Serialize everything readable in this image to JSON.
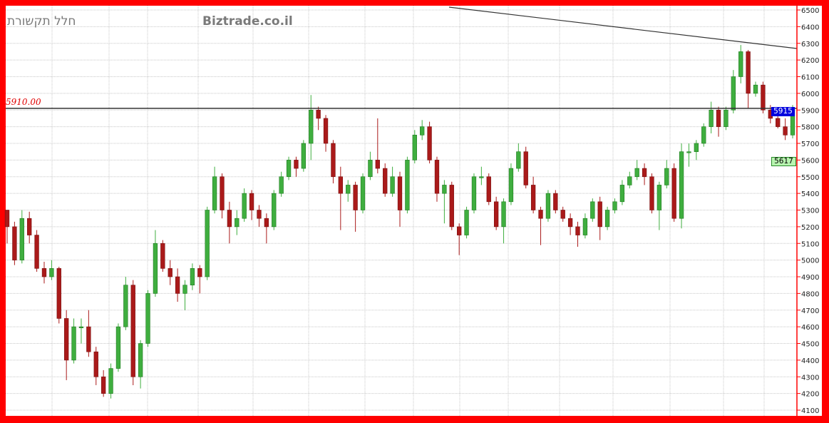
{
  "header": {
    "title_hebrew": "חלל תקשורת",
    "brand": "Biztrade.co.il"
  },
  "horizontal_line": {
    "label": "5910.00",
    "value": 5910
  },
  "price_badges": {
    "last": "5915",
    "last_color": "#0000dd",
    "secondary": "5617",
    "secondary_color": "#b8f5b0"
  },
  "colors": {
    "up": "#3fae3f",
    "down": "#aa1a1a",
    "frame": "#ff0000"
  },
  "chart_data": {
    "type": "candlestick",
    "title": "",
    "ylim": [
      4100,
      6500
    ],
    "yticks": [
      6500,
      6400,
      6300,
      6200,
      6100,
      6000,
      5900,
      5800,
      5700,
      5600,
      5500,
      5400,
      5300,
      5200,
      5100,
      5000,
      4900,
      4800,
      4700,
      4600,
      4500,
      4400,
      4300,
      4200,
      4100
    ],
    "grid": true,
    "trendline": {
      "from_price": 6517,
      "to_price": 6269
    },
    "ohlc": [
      [
        5300,
        5300,
        5100,
        5200
      ],
      [
        5200,
        5230,
        4970,
        5000
      ],
      [
        5000,
        5300,
        4980,
        5250
      ],
      [
        5250,
        5290,
        5100,
        5150
      ],
      [
        5150,
        5180,
        4930,
        4950
      ],
      [
        4950,
        4990,
        4860,
        4900
      ],
      [
        4900,
        5000,
        4880,
        4950
      ],
      [
        4950,
        4960,
        4620,
        4650
      ],
      [
        4650,
        4700,
        4280,
        4400
      ],
      [
        4400,
        4650,
        4380,
        4600
      ],
      [
        4600,
        4650,
        4500,
        4600
      ],
      [
        4600,
        4700,
        4420,
        4450
      ],
      [
        4450,
        4480,
        4250,
        4300
      ],
      [
        4300,
        4340,
        4180,
        4200
      ],
      [
        4200,
        4380,
        4170,
        4350
      ],
      [
        4350,
        4620,
        4330,
        4600
      ],
      [
        4600,
        4900,
        4580,
        4850
      ],
      [
        4850,
        4880,
        4250,
        4300
      ],
      [
        4300,
        4520,
        4230,
        4500
      ],
      [
        4500,
        4820,
        4480,
        4800
      ],
      [
        4800,
        5180,
        4780,
        5100
      ],
      [
        5100,
        5120,
        4930,
        4950
      ],
      [
        4950,
        5000,
        4850,
        4900
      ],
      [
        4900,
        4950,
        4750,
        4800
      ],
      [
        4800,
        4880,
        4700,
        4850
      ],
      [
        4850,
        4980,
        4820,
        4950
      ],
      [
        4950,
        4970,
        4800,
        4900
      ],
      [
        4900,
        5320,
        4880,
        5300
      ],
      [
        5300,
        5560,
        5280,
        5500
      ],
      [
        5500,
        5520,
        5250,
        5300
      ],
      [
        5300,
        5350,
        5100,
        5200
      ],
      [
        5200,
        5300,
        5150,
        5250
      ],
      [
        5250,
        5430,
        5230,
        5400
      ],
      [
        5400,
        5420,
        5240,
        5300
      ],
      [
        5300,
        5330,
        5200,
        5250
      ],
      [
        5250,
        5280,
        5100,
        5200
      ],
      [
        5200,
        5420,
        5180,
        5400
      ],
      [
        5400,
        5530,
        5380,
        5500
      ],
      [
        5500,
        5620,
        5480,
        5600
      ],
      [
        5600,
        5620,
        5500,
        5550
      ],
      [
        5550,
        5720,
        5530,
        5700
      ],
      [
        5700,
        5990,
        5600,
        5900
      ],
      [
        5900,
        5920,
        5780,
        5850
      ],
      [
        5850,
        5870,
        5650,
        5700
      ],
      [
        5700,
        5720,
        5460,
        5500
      ],
      [
        5500,
        5560,
        5180,
        5400
      ],
      [
        5400,
        5480,
        5350,
        5450
      ],
      [
        5450,
        5470,
        5170,
        5300
      ],
      [
        5300,
        5520,
        5280,
        5500
      ],
      [
        5500,
        5650,
        5480,
        5600
      ],
      [
        5600,
        5850,
        5520,
        5550
      ],
      [
        5550,
        5580,
        5380,
        5400
      ],
      [
        5400,
        5560,
        5380,
        5500
      ],
      [
        5500,
        5530,
        5200,
        5300
      ],
      [
        5300,
        5620,
        5280,
        5600
      ],
      [
        5600,
        5780,
        5580,
        5750
      ],
      [
        5750,
        5840,
        5720,
        5800
      ],
      [
        5800,
        5830,
        5580,
        5600
      ],
      [
        5600,
        5620,
        5350,
        5400
      ],
      [
        5400,
        5480,
        5220,
        5450
      ],
      [
        5450,
        5470,
        5180,
        5200
      ],
      [
        5200,
        5220,
        5030,
        5150
      ],
      [
        5150,
        5320,
        5130,
        5300
      ],
      [
        5300,
        5520,
        5280,
        5500
      ],
      [
        5500,
        5560,
        5450,
        5500
      ],
      [
        5500,
        5520,
        5330,
        5350
      ],
      [
        5350,
        5380,
        5180,
        5200
      ],
      [
        5200,
        5370,
        5100,
        5350
      ],
      [
        5350,
        5580,
        5330,
        5550
      ],
      [
        5550,
        5700,
        5530,
        5650
      ],
      [
        5650,
        5680,
        5430,
        5450
      ],
      [
        5450,
        5500,
        5280,
        5300
      ],
      [
        5300,
        5320,
        5090,
        5250
      ],
      [
        5250,
        5420,
        5230,
        5400
      ],
      [
        5400,
        5420,
        5280,
        5300
      ],
      [
        5300,
        5320,
        5230,
        5250
      ],
      [
        5250,
        5280,
        5150,
        5200
      ],
      [
        5200,
        5230,
        5080,
        5150
      ],
      [
        5150,
        5280,
        5130,
        5250
      ],
      [
        5250,
        5370,
        5230,
        5350
      ],
      [
        5350,
        5380,
        5120,
        5200
      ],
      [
        5200,
        5320,
        5180,
        5300
      ],
      [
        5300,
        5370,
        5280,
        5350
      ],
      [
        5350,
        5480,
        5330,
        5450
      ],
      [
        5450,
        5530,
        5430,
        5500
      ],
      [
        5500,
        5600,
        5480,
        5550
      ],
      [
        5550,
        5580,
        5450,
        5500
      ],
      [
        5500,
        5520,
        5280,
        5300
      ],
      [
        5300,
        5470,
        5180,
        5450
      ],
      [
        5450,
        5600,
        5430,
        5550
      ],
      [
        5550,
        5580,
        5230,
        5250
      ],
      [
        5250,
        5700,
        5190,
        5650
      ],
      [
        5650,
        5700,
        5560,
        5650
      ],
      [
        5650,
        5720,
        5600,
        5700
      ],
      [
        5700,
        5820,
        5680,
        5800
      ],
      [
        5800,
        5950,
        5760,
        5900
      ],
      [
        5900,
        5920,
        5740,
        5800
      ],
      [
        5800,
        5920,
        5780,
        5900
      ],
      [
        5900,
        6140,
        5880,
        6100
      ],
      [
        6100,
        6290,
        6060,
        6250
      ],
      [
        6250,
        6260,
        5910,
        6000
      ],
      [
        6000,
        6070,
        5980,
        6050
      ],
      [
        6050,
        6070,
        5880,
        5900
      ],
      [
        5900,
        5930,
        5820,
        5850
      ],
      [
        5850,
        5880,
        5790,
        5800
      ],
      [
        5800,
        5850,
        5720,
        5750
      ],
      [
        5750,
        5930,
        5730,
        5900
      ]
    ]
  }
}
